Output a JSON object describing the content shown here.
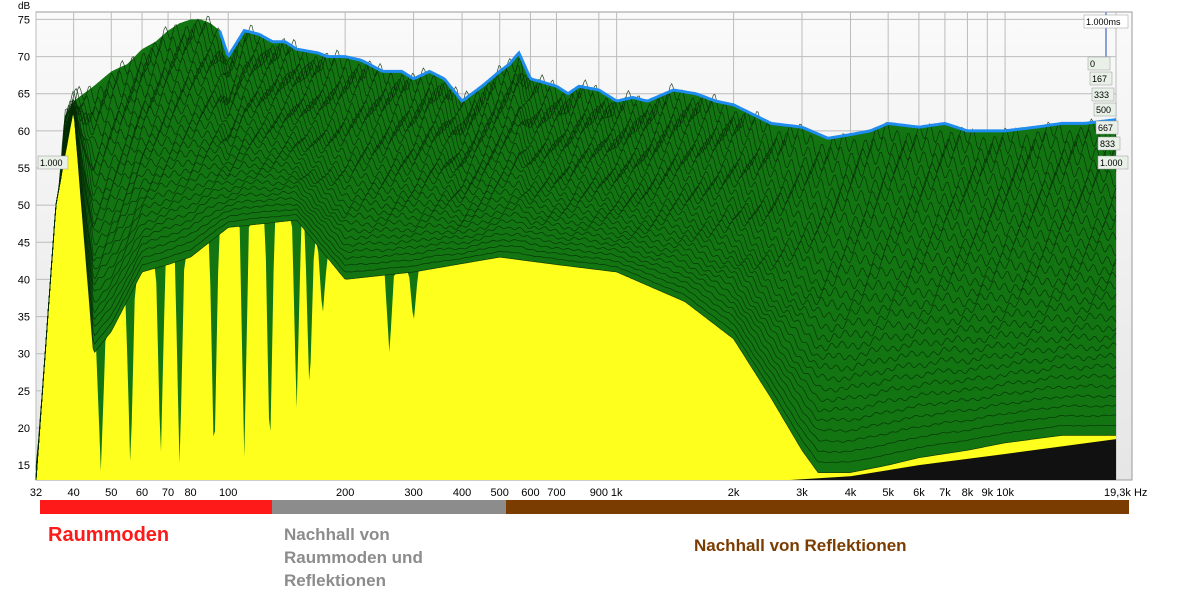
{
  "chart_data": {
    "type": "area",
    "title": "",
    "xlabel": "Hz",
    "ylabel": "dB",
    "x_scale": "log",
    "xlim": [
      32,
      19300
    ],
    "ylim": [
      13,
      76
    ],
    "grid": true,
    "x_tick_labels": [
      {
        "v": 32,
        "t": "32"
      },
      {
        "v": 40,
        "t": "40"
      },
      {
        "v": 50,
        "t": "50"
      },
      {
        "v": 60,
        "t": "60"
      },
      {
        "v": 70,
        "t": "70"
      },
      {
        "v": 80,
        "t": "80"
      },
      {
        "v": 100,
        "t": "100"
      },
      {
        "v": 200,
        "t": "200"
      },
      {
        "v": 300,
        "t": "300"
      },
      {
        "v": 400,
        "t": "400"
      },
      {
        "v": 500,
        "t": "500"
      },
      {
        "v": 600,
        "t": "600"
      },
      {
        "v": 700,
        "t": "700"
      },
      {
        "v": 900,
        "t": "900"
      },
      {
        "v": 1000,
        "t": "1k"
      },
      {
        "v": 2000,
        "t": "2k"
      },
      {
        "v": 3000,
        "t": "3k"
      },
      {
        "v": 4000,
        "t": "4k"
      },
      {
        "v": 5000,
        "t": "5k"
      },
      {
        "v": 6000,
        "t": "6k"
      },
      {
        "v": 7000,
        "t": "7k"
      },
      {
        "v": 8000,
        "t": "8k"
      },
      {
        "v": 9000,
        "t": "9k"
      },
      {
        "v": 10000,
        "t": "10k"
      },
      {
        "v": 19300,
        "t": "19,3k Hz"
      }
    ],
    "y_ticks": [
      15,
      20,
      25,
      30,
      35,
      40,
      45,
      50,
      55,
      60,
      65,
      70,
      75
    ],
    "time_axis_labels": [
      "1.000ms",
      "0",
      "167",
      "333",
      "500",
      "667",
      "833",
      "1.000"
    ],
    "left_marker": "1.000",
    "front_envelope": {
      "x": [
        32,
        36,
        38,
        40,
        45,
        50,
        55,
        60,
        65,
        70,
        75,
        80,
        85,
        90,
        95,
        100,
        110,
        120,
        130,
        140,
        150,
        170,
        180,
        200,
        220,
        250,
        280,
        300,
        330,
        360,
        400,
        450,
        500,
        530,
        560,
        600,
        650,
        700,
        750,
        800,
        900,
        1000,
        1100,
        1200,
        1400,
        1600,
        1800,
        2000,
        2500,
        3000,
        3500,
        4000,
        4500,
        5000,
        6000,
        7000,
        8000,
        9000,
        10000,
        12000,
        14000,
        16000,
        19300
      ],
      "y": [
        13,
        45,
        62,
        64,
        66,
        68,
        69,
        71,
        72,
        73.5,
        74.5,
        75,
        75,
        74.5,
        73.5,
        70,
        73.5,
        73,
        72,
        72,
        71,
        70.5,
        70,
        70,
        69.5,
        68,
        68,
        67,
        68,
        67,
        64,
        66,
        68,
        69,
        70.5,
        67,
        66.5,
        66,
        65,
        66,
        65.5,
        64,
        64.5,
        64,
        65.5,
        65,
        64,
        63.5,
        61,
        60.5,
        59,
        59.5,
        60,
        61,
        60.5,
        61,
        60,
        60,
        60,
        60.5,
        61,
        61,
        61.5
      ]
    },
    "decay_floor": {
      "x": [
        32,
        36,
        40,
        45,
        50,
        60,
        70,
        80,
        100,
        150,
        200,
        300,
        500,
        700,
        1000,
        1500,
        2000,
        2500,
        3000,
        3300,
        4000,
        5000,
        6000,
        8000,
        10000,
        14000,
        19300
      ],
      "y": [
        13,
        50,
        63,
        30,
        33,
        41,
        42,
        43,
        47,
        48,
        40,
        41,
        43,
        42,
        41,
        37,
        32,
        24,
        17,
        14,
        14,
        15,
        16,
        17,
        18,
        19,
        19
      ]
    },
    "bands": [
      {
        "label": "Raummoden",
        "from": 32,
        "to": 130,
        "color": "#ff1a1a"
      },
      {
        "label": "Nachhall von Raummoden und Reflektionen",
        "from": 130,
        "to": 520,
        "color": "#8c8c8c"
      },
      {
        "label": "Nachhall von Reflektionen",
        "from": 520,
        "to": 19300,
        "color": "#7a3c00"
      }
    ],
    "colors": {
      "plot_bg": "#e6e6e6",
      "plot_bg_top": "#fafafa",
      "grid": "#bcbcbc",
      "yellow_fill": "#ffff1e",
      "green_fill": "#127512",
      "green_line": "#062b06",
      "envelope_line": "#1f8cf0",
      "floor_black": "#111111",
      "band_label_1": "#ff1a1a",
      "band_label_2": "#8c8c8c",
      "band_label_3": "#7a3c00"
    }
  },
  "labels": {
    "raummoden": "Raummoden",
    "nachhall_lines": [
      "Nachhall von",
      "Raummoden und",
      "Reflektionen"
    ],
    "reflektionen": "Nachhall von Reflektionen"
  }
}
